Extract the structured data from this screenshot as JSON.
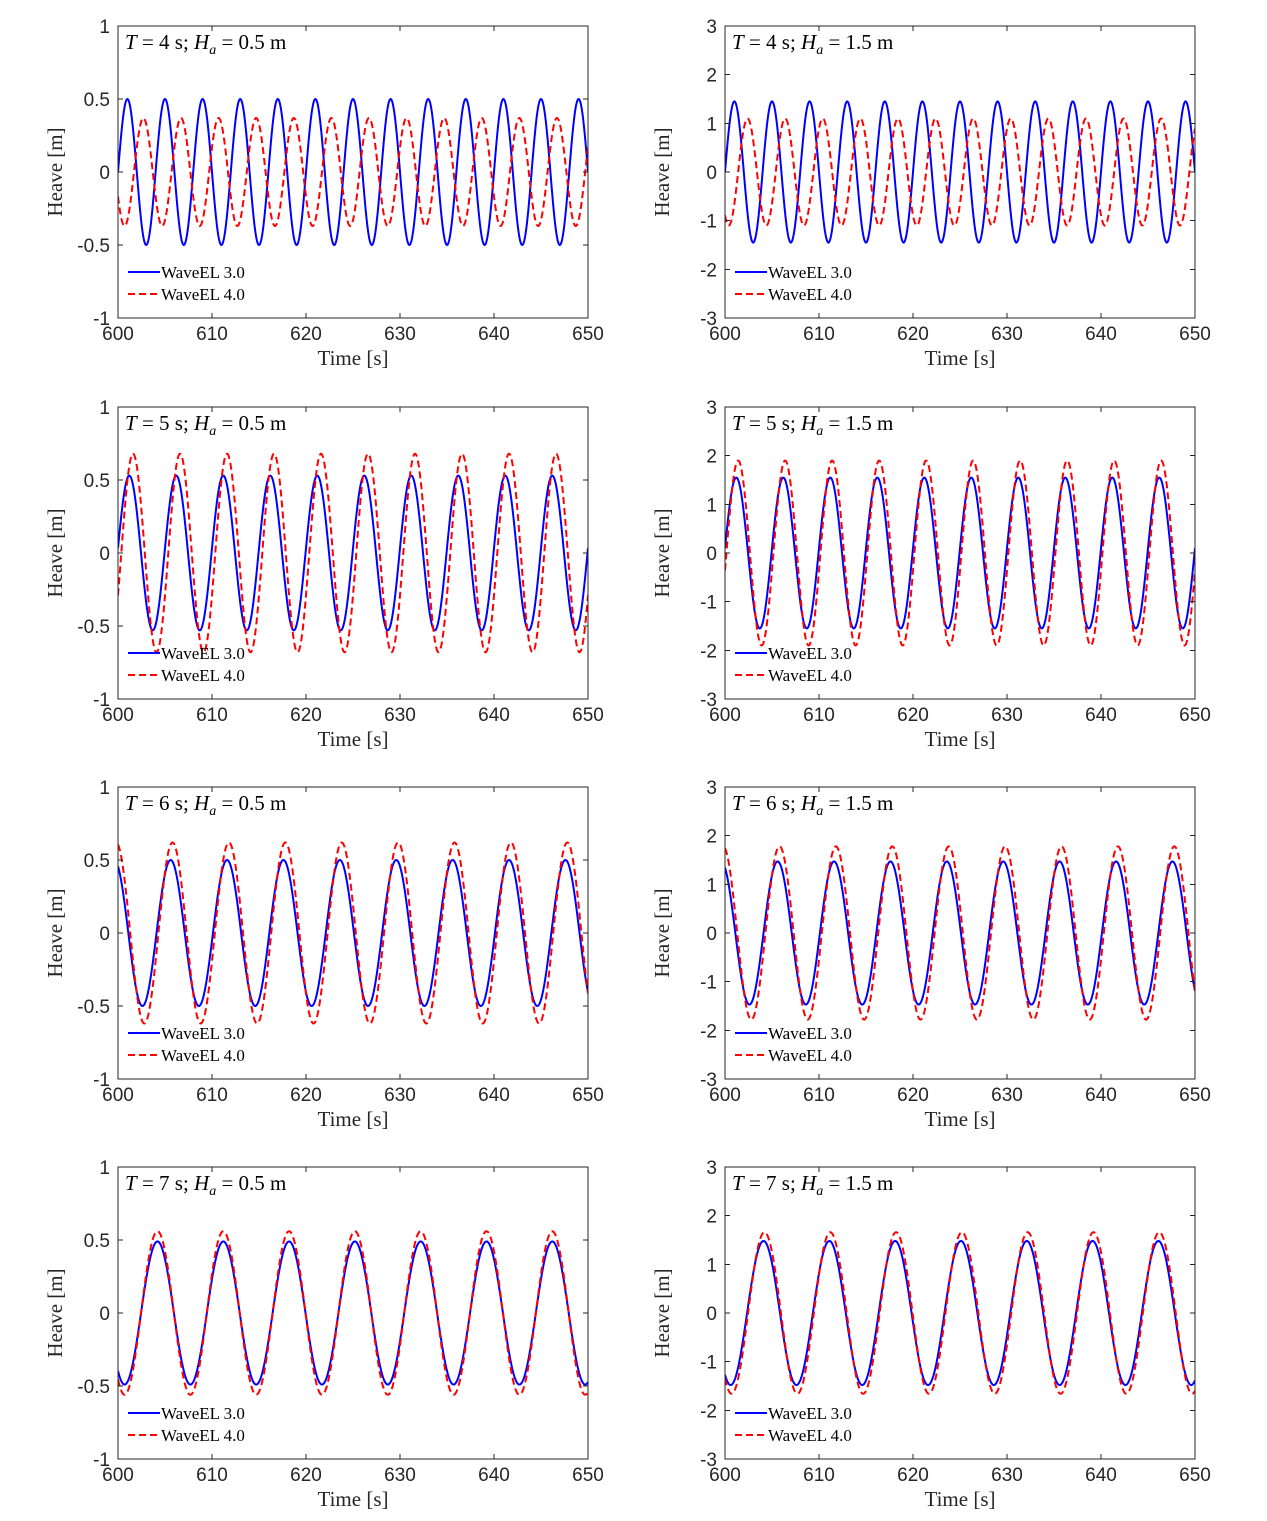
{
  "figure": {
    "colors": {
      "wavel3": "#0000ff",
      "wavel4": "#ff0000",
      "axis": "#262626"
    },
    "line_styles": {
      "wavel3": "solid",
      "wavel4": "dashed"
    }
  },
  "chart_data": [
    {
      "type": "line",
      "title_parts": {
        "T": "T",
        "t_eq": " = 4 s; ",
        "H": "H",
        "sub": "a",
        "h_eq": " = 0.5 m"
      },
      "xlabel": "Time [s]",
      "ylabel": "Heave [m]",
      "xlim": [
        600,
        650
      ],
      "ylim": [
        -1,
        1
      ],
      "xticks": [
        600,
        610,
        620,
        630,
        640,
        650
      ],
      "yticks": [
        -1,
        -0.5,
        0,
        0.5,
        1
      ],
      "ytick_labels": [
        "-1",
        "-0.5",
        "0",
        "0.5",
        "1"
      ],
      "grid": false,
      "legend_position": "bottom-left",
      "series": [
        {
          "name": "WaveEL 3.0",
          "color": "#0000ff",
          "style": "solid",
          "period_s": 4,
          "amplitude_m": 0.5,
          "peak_time_s": 601
        },
        {
          "name": "WaveEL 4.0",
          "color": "#ff0000",
          "style": "dashed",
          "period_s": 4,
          "amplitude_m": 0.37,
          "peak_time_s": 602.7
        }
      ]
    },
    {
      "type": "line",
      "title_parts": {
        "T": "T",
        "t_eq": " = 4 s; ",
        "H": "H",
        "sub": "a",
        "h_eq": " = 1.5 m"
      },
      "xlabel": "Time [s]",
      "ylabel": "Heave [m]",
      "xlim": [
        600,
        650
      ],
      "ylim": [
        -3,
        3
      ],
      "xticks": [
        600,
        610,
        620,
        630,
        640,
        650
      ],
      "yticks": [
        -3,
        -2,
        -1,
        0,
        1,
        2,
        3
      ],
      "ytick_labels": [
        "-3",
        "-2",
        "-1",
        "0",
        "1",
        "2",
        "3"
      ],
      "grid": false,
      "legend_position": "bottom-left",
      "series": [
        {
          "name": "WaveEL 3.0",
          "color": "#0000ff",
          "style": "solid",
          "period_s": 4,
          "amplitude_m": 1.45,
          "peak_time_s": 601
        },
        {
          "name": "WaveEL 4.0",
          "color": "#ff0000",
          "style": "dashed",
          "period_s": 4,
          "amplitude_m": 1.1,
          "peak_time_s": 602.4
        }
      ]
    },
    {
      "type": "line",
      "title_parts": {
        "T": "T",
        "t_eq": " = 5 s; ",
        "H": "H",
        "sub": "a",
        "h_eq": " = 0.5 m"
      },
      "xlabel": "Time [s]",
      "ylabel": "Heave [m]",
      "xlim": [
        600,
        650
      ],
      "ylim": [
        -1,
        1
      ],
      "xticks": [
        600,
        610,
        620,
        630,
        640,
        650
      ],
      "yticks": [
        -1,
        -0.5,
        0,
        0.5,
        1
      ],
      "ytick_labels": [
        "-1",
        "-0.5",
        "0",
        "0.5",
        "1"
      ],
      "grid": false,
      "legend_position": "bottom-left",
      "series": [
        {
          "name": "WaveEL 3.0",
          "color": "#0000ff",
          "style": "solid",
          "period_s": 5,
          "amplitude_m": 0.53,
          "peak_time_s": 601.2
        },
        {
          "name": "WaveEL 4.0",
          "color": "#ff0000",
          "style": "dashed",
          "period_s": 5,
          "amplitude_m": 0.68,
          "peak_time_s": 601.6
        }
      ]
    },
    {
      "type": "line",
      "title_parts": {
        "T": "T",
        "t_eq": " = 5 s; ",
        "H": "H",
        "sub": "a",
        "h_eq": " = 1.5 m"
      },
      "xlabel": "Time [s]",
      "ylabel": "Heave [m]",
      "xlim": [
        600,
        650
      ],
      "ylim": [
        -3,
        3
      ],
      "xticks": [
        600,
        610,
        620,
        630,
        640,
        650
      ],
      "yticks": [
        -3,
        -2,
        -1,
        0,
        1,
        2,
        3
      ],
      "ytick_labels": [
        "-3",
        "-2",
        "-1",
        "0",
        "1",
        "2",
        "3"
      ],
      "grid": false,
      "legend_position": "bottom-left",
      "series": [
        {
          "name": "WaveEL 3.0",
          "color": "#0000ff",
          "style": "solid",
          "period_s": 5,
          "amplitude_m": 1.55,
          "peak_time_s": 601.2
        },
        {
          "name": "WaveEL 4.0",
          "color": "#ff0000",
          "style": "dashed",
          "period_s": 5,
          "amplitude_m": 1.9,
          "peak_time_s": 601.4
        }
      ]
    },
    {
      "type": "line",
      "title_parts": {
        "T": "T",
        "t_eq": " = 6 s; ",
        "H": "H",
        "sub": "a",
        "h_eq": " = 0.5 m"
      },
      "xlabel": "Time [s]",
      "ylabel": "Heave [m]",
      "xlim": [
        600,
        650
      ],
      "ylim": [
        -1,
        1
      ],
      "xticks": [
        600,
        610,
        620,
        630,
        640,
        650
      ],
      "yticks": [
        -1,
        -0.5,
        0,
        0.5,
        1
      ],
      "ytick_labels": [
        "-1",
        "-0.5",
        "0",
        "0.5",
        "1"
      ],
      "grid": false,
      "legend_position": "bottom-left",
      "series": [
        {
          "name": "WaveEL 3.0",
          "color": "#0000ff",
          "style": "solid",
          "period_s": 6,
          "amplitude_m": 0.5,
          "peak_time_s": 605.6
        },
        {
          "name": "WaveEL 4.0",
          "color": "#ff0000",
          "style": "dashed",
          "period_s": 6,
          "amplitude_m": 0.62,
          "peak_time_s": 605.8
        }
      ]
    },
    {
      "type": "line",
      "title_parts": {
        "T": "T",
        "t_eq": " = 6 s; ",
        "H": "H",
        "sub": "a",
        "h_eq": " = 1.5 m"
      },
      "xlabel": "Time [s]",
      "ylabel": "Heave [m]",
      "xlim": [
        600,
        650
      ],
      "ylim": [
        -3,
        3
      ],
      "xticks": [
        600,
        610,
        620,
        630,
        640,
        650
      ],
      "yticks": [
        -3,
        -2,
        -1,
        0,
        1,
        2,
        3
      ],
      "ytick_labels": [
        "-3",
        "-2",
        "-1",
        "0",
        "1",
        "2",
        "3"
      ],
      "grid": false,
      "legend_position": "bottom-left",
      "series": [
        {
          "name": "WaveEL 3.0",
          "color": "#0000ff",
          "style": "solid",
          "period_s": 6,
          "amplitude_m": 1.47,
          "peak_time_s": 605.6
        },
        {
          "name": "WaveEL 4.0",
          "color": "#ff0000",
          "style": "dashed",
          "period_s": 6,
          "amplitude_m": 1.78,
          "peak_time_s": 605.8
        }
      ]
    },
    {
      "type": "line",
      "title_parts": {
        "T": "T",
        "t_eq": " = 7 s; ",
        "H": "H",
        "sub": "a",
        "h_eq": " = 0.5 m"
      },
      "xlabel": "Time [s]",
      "ylabel": "Heave [m]",
      "xlim": [
        600,
        650
      ],
      "ylim": [
        -1,
        1
      ],
      "xticks": [
        600,
        610,
        620,
        630,
        640,
        650
      ],
      "yticks": [
        -1,
        -0.5,
        0,
        0.5,
        1
      ],
      "ytick_labels": [
        "-1",
        "-0.5",
        "0",
        "0.5",
        "1"
      ],
      "grid": false,
      "legend_position": "bottom-left",
      "series": [
        {
          "name": "WaveEL 3.0",
          "color": "#0000ff",
          "style": "solid",
          "period_s": 7,
          "amplitude_m": 0.49,
          "peak_time_s": 604.2
        },
        {
          "name": "WaveEL 4.0",
          "color": "#ff0000",
          "style": "dashed",
          "period_s": 7,
          "amplitude_m": 0.56,
          "peak_time_s": 604.2
        }
      ]
    },
    {
      "type": "line",
      "title_parts": {
        "T": "T",
        "t_eq": " = 7 s; ",
        "H": "H",
        "sub": "a",
        "h_eq": " = 1.5 m"
      },
      "xlabel": "Time [s]",
      "ylabel": "Heave [m]",
      "xlim": [
        600,
        650
      ],
      "ylim": [
        -3,
        3
      ],
      "xticks": [
        600,
        610,
        620,
        630,
        640,
        650
      ],
      "yticks": [
        -3,
        -2,
        -1,
        0,
        1,
        2,
        3
      ],
      "ytick_labels": [
        "-3",
        "-2",
        "-1",
        "0",
        "1",
        "2",
        "3"
      ],
      "grid": false,
      "legend_position": "bottom-left",
      "series": [
        {
          "name": "WaveEL 3.0",
          "color": "#0000ff",
          "style": "solid",
          "period_s": 7,
          "amplitude_m": 1.48,
          "peak_time_s": 604.1
        },
        {
          "name": "WaveEL 4.0",
          "color": "#ff0000",
          "style": "dashed",
          "period_s": 7,
          "amplitude_m": 1.66,
          "peak_time_s": 604.2
        }
      ]
    }
  ]
}
